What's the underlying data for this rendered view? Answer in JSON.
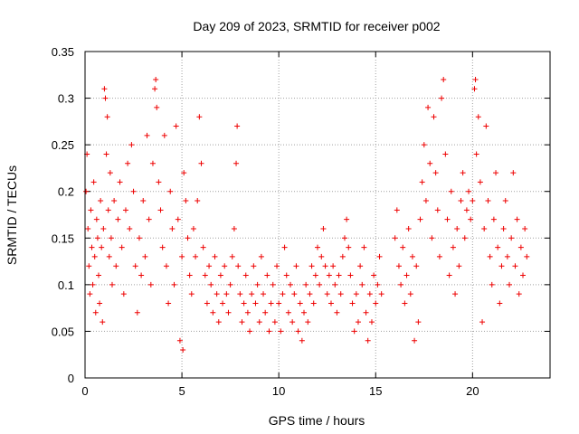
{
  "chart_data": {
    "type": "scatter",
    "title": "Day 209 of 2023, SRMTID for receiver p002",
    "xlabel": "GPS time / hours",
    "ylabel": "SRMTID / TECUs",
    "xlim": [
      0,
      24
    ],
    "ylim": [
      0,
      0.35
    ],
    "x_ticks": [
      0,
      5,
      10,
      15,
      20
    ],
    "x_tick_labels": [
      "0",
      "5",
      "10",
      "15",
      "20"
    ],
    "y_ticks": [
      0,
      0.05,
      0.1,
      0.15,
      0.2,
      0.25,
      0.3,
      0.35
    ],
    "y_tick_labels": [
      "0",
      "0.05",
      "0.1",
      "0.15",
      "0.2",
      "0.25",
      "0.3",
      "0.35"
    ],
    "grid": true,
    "marker": "plus",
    "color": "#ee0000",
    "series": [
      {
        "name": "SRMTID",
        "points": [
          [
            0.05,
            0.2
          ],
          [
            0.1,
            0.24
          ],
          [
            0.15,
            0.16
          ],
          [
            0.2,
            0.12
          ],
          [
            0.25,
            0.09
          ],
          [
            0.3,
            0.18
          ],
          [
            0.35,
            0.14
          ],
          [
            0.4,
            0.1
          ],
          [
            0.45,
            0.21
          ],
          [
            0.5,
            0.13
          ],
          [
            0.55,
            0.07
          ],
          [
            0.6,
            0.17
          ],
          [
            0.65,
            0.15
          ],
          [
            0.7,
            0.11
          ],
          [
            0.75,
            0.08
          ],
          [
            0.8,
            0.19
          ],
          [
            0.85,
            0.14
          ],
          [
            0.9,
            0.06
          ],
          [
            0.95,
            0.16
          ],
          [
            1.0,
            0.31
          ],
          [
            1.05,
            0.3
          ],
          [
            1.1,
            0.24
          ],
          [
            1.15,
            0.28
          ],
          [
            1.2,
            0.18
          ],
          [
            1.25,
            0.13
          ],
          [
            1.3,
            0.22
          ],
          [
            1.35,
            0.15
          ],
          [
            1.4,
            0.1
          ],
          [
            1.5,
            0.19
          ],
          [
            1.6,
            0.12
          ],
          [
            1.7,
            0.17
          ],
          [
            1.8,
            0.21
          ],
          [
            1.9,
            0.14
          ],
          [
            2.0,
            0.09
          ],
          [
            2.1,
            0.18
          ],
          [
            2.2,
            0.23
          ],
          [
            2.3,
            0.16
          ],
          [
            2.4,
            0.25
          ],
          [
            2.5,
            0.2
          ],
          [
            2.6,
            0.12
          ],
          [
            2.7,
            0.07
          ],
          [
            2.8,
            0.15
          ],
          [
            2.9,
            0.11
          ],
          [
            3.0,
            0.19
          ],
          [
            3.1,
            0.13
          ],
          [
            3.2,
            0.26
          ],
          [
            3.3,
            0.17
          ],
          [
            3.4,
            0.1
          ],
          [
            3.5,
            0.23
          ],
          [
            3.6,
            0.31
          ],
          [
            3.65,
            0.32
          ],
          [
            3.7,
            0.29
          ],
          [
            3.8,
            0.21
          ],
          [
            3.9,
            0.18
          ],
          [
            4.0,
            0.14
          ],
          [
            4.1,
            0.26
          ],
          [
            4.2,
            0.12
          ],
          [
            4.3,
            0.08
          ],
          [
            4.4,
            0.2
          ],
          [
            4.5,
            0.16
          ],
          [
            4.6,
            0.1
          ],
          [
            4.7,
            0.27
          ],
          [
            4.8,
            0.17
          ],
          [
            4.9,
            0.04
          ],
          [
            5.0,
            0.13
          ],
          [
            5.05,
            0.03
          ],
          [
            5.1,
            0.22
          ],
          [
            5.2,
            0.19
          ],
          [
            5.3,
            0.15
          ],
          [
            5.4,
            0.11
          ],
          [
            5.5,
            0.09
          ],
          [
            5.6,
            0.16
          ],
          [
            5.7,
            0.13
          ],
          [
            5.8,
            0.19
          ],
          [
            5.9,
            0.28
          ],
          [
            6.0,
            0.23
          ],
          [
            6.1,
            0.14
          ],
          [
            6.2,
            0.11
          ],
          [
            6.3,
            0.08
          ],
          [
            6.4,
            0.12
          ],
          [
            6.5,
            0.1
          ],
          [
            6.6,
            0.07
          ],
          [
            6.7,
            0.13
          ],
          [
            6.8,
            0.09
          ],
          [
            6.9,
            0.06
          ],
          [
            7.0,
            0.11
          ],
          [
            7.1,
            0.08
          ],
          [
            7.2,
            0.12
          ],
          [
            7.3,
            0.09
          ],
          [
            7.4,
            0.07
          ],
          [
            7.5,
            0.1
          ],
          [
            7.6,
            0.13
          ],
          [
            7.7,
            0.16
          ],
          [
            7.8,
            0.23
          ],
          [
            7.85,
            0.27
          ],
          [
            7.9,
            0.12
          ],
          [
            8.0,
            0.09
          ],
          [
            8.1,
            0.06
          ],
          [
            8.2,
            0.08
          ],
          [
            8.3,
            0.11
          ],
          [
            8.4,
            0.07
          ],
          [
            8.5,
            0.05
          ],
          [
            8.6,
            0.09
          ],
          [
            8.7,
            0.12
          ],
          [
            8.8,
            0.08
          ],
          [
            8.9,
            0.1
          ],
          [
            9.0,
            0.06
          ],
          [
            9.1,
            0.13
          ],
          [
            9.2,
            0.09
          ],
          [
            9.3,
            0.07
          ],
          [
            9.4,
            0.11
          ],
          [
            9.5,
            0.05
          ],
          [
            9.6,
            0.08
          ],
          [
            9.7,
            0.1
          ],
          [
            9.8,
            0.06
          ],
          [
            9.9,
            0.12
          ],
          [
            10.0,
            0.08
          ],
          [
            10.1,
            0.05
          ],
          [
            10.2,
            0.09
          ],
          [
            10.3,
            0.14
          ],
          [
            10.4,
            0.11
          ],
          [
            10.5,
            0.07
          ],
          [
            10.6,
            0.1
          ],
          [
            10.7,
            0.06
          ],
          [
            10.8,
            0.09
          ],
          [
            10.9,
            0.12
          ],
          [
            11.0,
            0.05
          ],
          [
            11.1,
            0.08
          ],
          [
            11.2,
            0.04
          ],
          [
            11.3,
            0.07
          ],
          [
            11.4,
            0.1
          ],
          [
            11.5,
            0.06
          ],
          [
            11.6,
            0.09
          ],
          [
            11.7,
            0.12
          ],
          [
            11.8,
            0.08
          ],
          [
            11.9,
            0.11
          ],
          [
            12.0,
            0.14
          ],
          [
            12.1,
            0.1
          ],
          [
            12.2,
            0.13
          ],
          [
            12.3,
            0.16
          ],
          [
            12.4,
            0.12
          ],
          [
            12.5,
            0.09
          ],
          [
            12.6,
            0.11
          ],
          [
            12.7,
            0.08
          ],
          [
            12.8,
            0.12
          ],
          [
            12.9,
            0.1
          ],
          [
            13.0,
            0.07
          ],
          [
            13.1,
            0.11
          ],
          [
            13.2,
            0.09
          ],
          [
            13.3,
            0.13
          ],
          [
            13.4,
            0.15
          ],
          [
            13.5,
            0.17
          ],
          [
            13.6,
            0.14
          ],
          [
            13.7,
            0.11
          ],
          [
            13.8,
            0.08
          ],
          [
            13.9,
            0.05
          ],
          [
            14.0,
            0.09
          ],
          [
            14.1,
            0.06
          ],
          [
            14.2,
            0.12
          ],
          [
            14.3,
            0.1
          ],
          [
            14.4,
            0.14
          ],
          [
            14.5,
            0.07
          ],
          [
            14.6,
            0.04
          ],
          [
            14.7,
            0.09
          ],
          [
            14.8,
            0.06
          ],
          [
            14.9,
            0.11
          ],
          [
            15.0,
            0.08
          ],
          [
            15.1,
            0.1
          ],
          [
            15.2,
            0.13
          ],
          [
            15.3,
            0.09
          ],
          [
            16.0,
            0.15
          ],
          [
            16.1,
            0.18
          ],
          [
            16.2,
            0.12
          ],
          [
            16.3,
            0.1
          ],
          [
            16.4,
            0.14
          ],
          [
            16.5,
            0.08
          ],
          [
            16.6,
            0.11
          ],
          [
            16.7,
            0.16
          ],
          [
            16.8,
            0.09
          ],
          [
            16.9,
            0.13
          ],
          [
            17.0,
            0.04
          ],
          [
            17.1,
            0.12
          ],
          [
            17.2,
            0.06
          ],
          [
            17.3,
            0.17
          ],
          [
            17.4,
            0.21
          ],
          [
            17.5,
            0.25
          ],
          [
            17.6,
            0.19
          ],
          [
            17.7,
            0.29
          ],
          [
            17.8,
            0.23
          ],
          [
            17.9,
            0.15
          ],
          [
            18.0,
            0.28
          ],
          [
            18.1,
            0.22
          ],
          [
            18.2,
            0.18
          ],
          [
            18.3,
            0.13
          ],
          [
            18.4,
            0.3
          ],
          [
            18.5,
            0.32
          ],
          [
            18.6,
            0.24
          ],
          [
            18.7,
            0.17
          ],
          [
            18.8,
            0.11
          ],
          [
            18.9,
            0.2
          ],
          [
            19.0,
            0.14
          ],
          [
            19.1,
            0.09
          ],
          [
            19.2,
            0.16
          ],
          [
            19.3,
            0.12
          ],
          [
            19.4,
            0.19
          ],
          [
            19.5,
            0.22
          ],
          [
            19.6,
            0.15
          ],
          [
            19.7,
            0.18
          ],
          [
            19.8,
            0.2
          ],
          [
            19.9,
            0.17
          ],
          [
            20.0,
            0.19
          ],
          [
            20.1,
            0.31
          ],
          [
            20.15,
            0.32
          ],
          [
            20.2,
            0.24
          ],
          [
            20.3,
            0.28
          ],
          [
            20.4,
            0.21
          ],
          [
            20.5,
            0.06
          ],
          [
            20.6,
            0.16
          ],
          [
            20.7,
            0.27
          ],
          [
            20.8,
            0.19
          ],
          [
            20.9,
            0.13
          ],
          [
            21.0,
            0.1
          ],
          [
            21.1,
            0.17
          ],
          [
            21.2,
            0.22
          ],
          [
            21.3,
            0.14
          ],
          [
            21.4,
            0.08
          ],
          [
            21.5,
            0.12
          ],
          [
            21.6,
            0.16
          ],
          [
            21.7,
            0.19
          ],
          [
            21.8,
            0.13
          ],
          [
            21.9,
            0.1
          ],
          [
            22.0,
            0.15
          ],
          [
            22.1,
            0.22
          ],
          [
            22.2,
            0.12
          ],
          [
            22.3,
            0.17
          ],
          [
            22.4,
            0.09
          ],
          [
            22.5,
            0.14
          ],
          [
            22.6,
            0.11
          ],
          [
            22.7,
            0.16
          ],
          [
            22.8,
            0.13
          ]
        ]
      }
    ]
  }
}
